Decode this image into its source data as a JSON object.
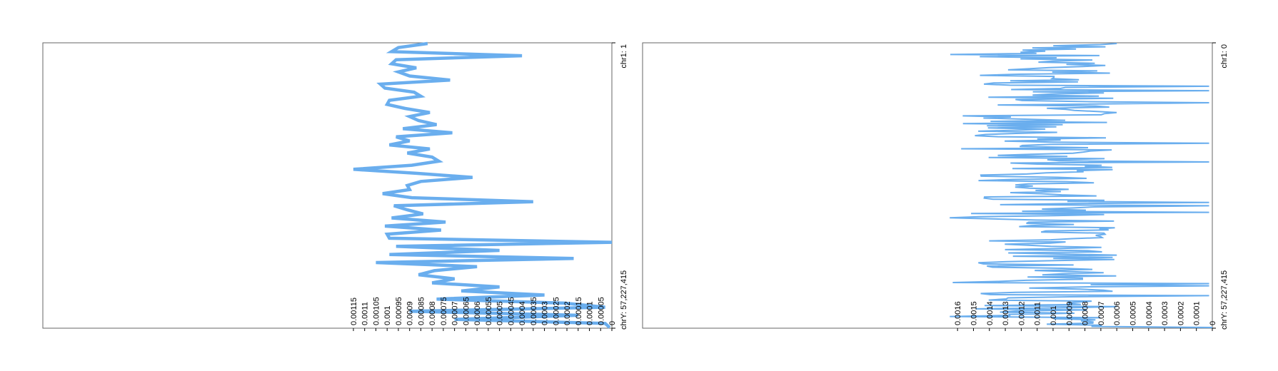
{
  "colors": {
    "line": "#6aaeee",
    "frame": "#666666",
    "text": "#000000"
  },
  "chart_data": [
    {
      "type": "line",
      "orientation": "vertical-genome",
      "position_start_label": "chr1: 1",
      "position_end_label": "chrY: 57,227,415",
      "xlim": [
        0,
        0.00115
      ],
      "ticks": [
        "0.00115",
        "0.0011",
        "0.00105",
        "0.001",
        "0.00095",
        "0.0009",
        "0.00085",
        "0.0008",
        "0.00075",
        "0.0007",
        "0.00065",
        "0.0006",
        "0.00055",
        "0.0005",
        "0.00045",
        "0.0004",
        "0.00035",
        "0.0003",
        "0.00025",
        "0.0002",
        "0.00015",
        "0.0001",
        "0.00005",
        "0"
      ],
      "tick_values": [
        0.00115,
        0.0011,
        0.00105,
        0.001,
        0.00095,
        0.0009,
        0.00085,
        0.0008,
        0.00075,
        0.0007,
        0.00065,
        0.0006,
        0.00055,
        0.0005,
        0.00045,
        0.0004,
        0.00035,
        0.0003,
        0.00025,
        0.0002,
        0.00015,
        0.0001,
        5e-05,
        0
      ],
      "values": [
        0.00082,
        0.00095,
        0.00098,
        0.0004,
        0.00096,
        0.00098,
        0.00087,
        0.00095,
        0.0009,
        0.00072,
        0.00103,
        0.00101,
        0.00088,
        0.00085,
        0.00099,
        0.001,
        0.00092,
        0.00081,
        0.0009,
        0.00086,
        0.00078,
        0.00093,
        0.00071,
        0.00096,
        0.0009,
        0.00099,
        0.00081,
        0.00091,
        0.0008,
        0.00077,
        0.00089,
        0.00115,
        0.00087,
        0.00062,
        0.00085,
        0.00091,
        0.0009,
        0.00102,
        0.00089,
        0.00035,
        0.00097,
        0.00091,
        0.00084,
        0.00098,
        0.00074,
        0.00101,
        0.00076,
        0.001,
        0.00099,
        0.0,
        0.00096,
        0.0005,
        0.00099,
        0.00017,
        0.00105,
        0.0006,
        0.00079,
        0.00086,
        0.0007,
        0.0008,
        0.0005,
        0.00067,
        0.0003,
        0.00078,
        0.00021,
        3e-05,
        0.0009,
        0.00015,
        0.0007,
        3e-05,
        1e-05
      ]
    },
    {
      "type": "line",
      "orientation": "vertical-genome",
      "position_start_label": "chr1: 0",
      "position_end_label": "chrY: 57,227,415",
      "xlim": [
        0,
        0.00165
      ],
      "ticks": [
        "0.0016",
        "0.0015",
        "0.0014",
        "0.0013",
        "0.0012",
        "0.0011",
        "0.001",
        "0.0009",
        "0.0008",
        "0.0007",
        "0.0006",
        "0.0005",
        "0.0004",
        "0.0003",
        "0.0002",
        "0.0001",
        "0"
      ],
      "tick_values": [
        0.0016,
        0.0015,
        0.0014,
        0.0013,
        0.0012,
        0.0011,
        0.001,
        0.0009,
        0.0008,
        0.0007,
        0.0006,
        0.0005,
        0.0004,
        0.0003,
        0.0002,
        0.0001,
        0
      ],
      "values_seed": 7
    }
  ]
}
